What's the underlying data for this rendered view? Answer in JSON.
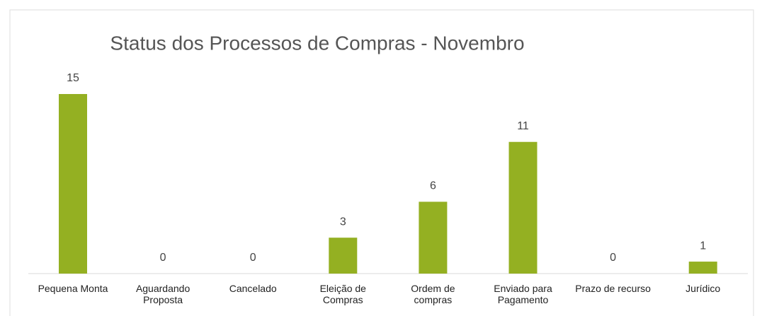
{
  "chart_data": {
    "type": "bar",
    "title": "Status dos Processos de Compras - Novembro",
    "categories": [
      "Pequena Monta",
      "Aguardando Proposta",
      "Cancelado",
      "Eleição de Compras",
      "Ordem de compras",
      "Enviado para Pagamento",
      "Prazo de recurso",
      "Jurídico"
    ],
    "values": [
      15,
      0,
      0,
      3,
      6,
      11,
      0,
      1
    ],
    "color": "#94b022"
  }
}
